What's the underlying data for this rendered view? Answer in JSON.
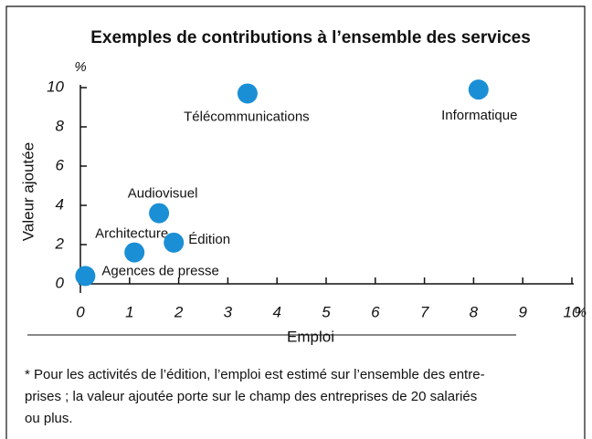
{
  "chart_data": {
    "type": "scatter",
    "title": "Exemples de contributions à l’ensemble des services",
    "x_label": "Emploi",
    "y_label": "Valeur ajoutée",
    "x_unit": "%",
    "y_unit": "%",
    "color": "#1a8fd6",
    "names": [
      "Agences de presse",
      "Architecture",
      "Édition",
      "Audiovisuel",
      "Télécommunications",
      "Informatique"
    ],
    "x": [
      0.1,
      1.1,
      1.9,
      1.6,
      3.4,
      8.1
    ],
    "values": [
      0.4,
      1.6,
      2.1,
      3.6,
      9.7,
      9.9
    ],
    "xlim": [
      0,
      10
    ],
    "ylim": [
      0,
      10
    ],
    "xticks": [
      0,
      1,
      2,
      3,
      4,
      5,
      6,
      7,
      8,
      9,
      10
    ],
    "yticks": [
      0,
      2,
      4,
      6,
      8,
      10
    ],
    "footnote": [
      "* Pour les activités de l’édition, l’emploi est estimé sur l’ensemble des entre-",
      "prises ; la valeur ajoutée porte sur le champ des entreprises de 20 salariés",
      "ou plus."
    ]
  }
}
